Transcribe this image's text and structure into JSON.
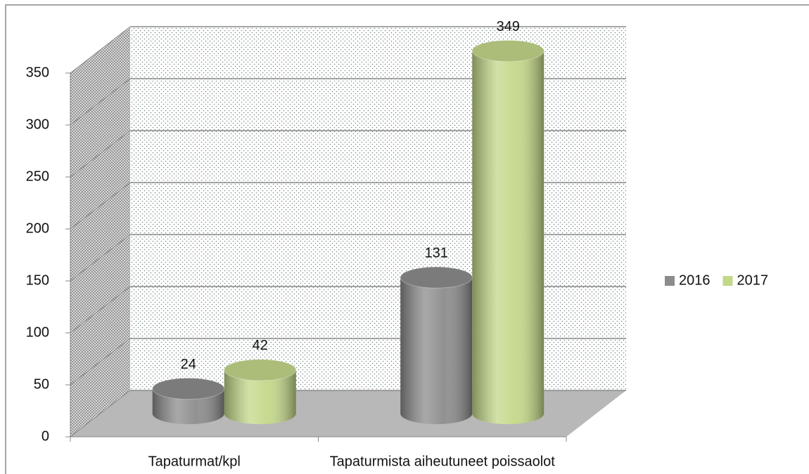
{
  "chart_data": {
    "type": "bar3d",
    "categories": [
      "Tapaturmat/kpl",
      "Tapaturmista aiheutuneet poissaolot"
    ],
    "series": [
      {
        "name": "2016",
        "color": "#8c8c8c",
        "values": [
          24,
          131
        ]
      },
      {
        "name": "2017",
        "color": "#c3d889",
        "values": [
          42,
          349
        ]
      }
    ],
    "ylim": [
      0,
      350
    ],
    "yticks": [
      0,
      50,
      100,
      150,
      200,
      250,
      300,
      350
    ],
    "grid": true,
    "legend": "right"
  }
}
